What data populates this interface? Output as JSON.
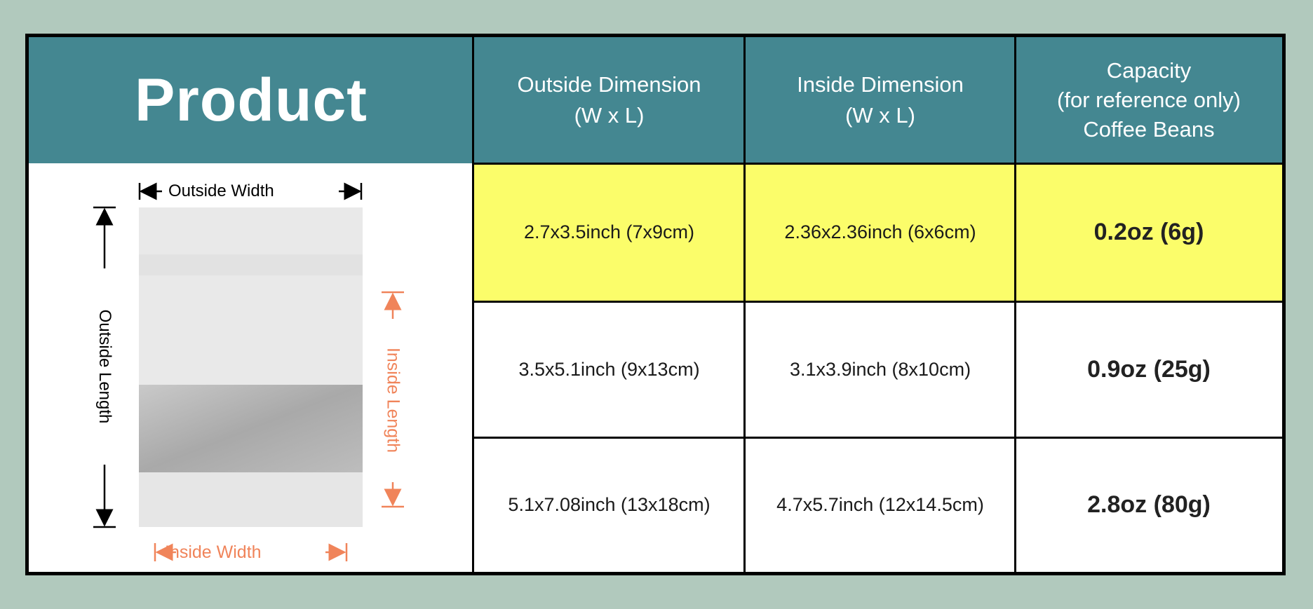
{
  "header": {
    "product": "Product",
    "outside_dimension": [
      "Outside Dimension",
      "(W x L)"
    ],
    "inside_dimension": [
      "Inside Dimension",
      "(W x L)"
    ],
    "capacity": [
      "Capacity",
      "(for reference only)",
      "Coffee Beans"
    ]
  },
  "diagram": {
    "outside_width": "Outside Width",
    "outside_length": "Outside Length",
    "inside_width": "Inside Width",
    "inside_length": "Inside Length"
  },
  "rows": [
    {
      "outside": "2.7x3.5inch (7x9cm)",
      "inside": "2.36x2.36inch (6x6cm)",
      "capacity": "0.2oz (6g)",
      "highlighted": true
    },
    {
      "outside": "3.5x5.1inch (9x13cm)",
      "inside": "3.1x3.9inch (8x10cm)",
      "capacity": "0.9oz (25g)",
      "highlighted": false
    },
    {
      "outside": "5.1x7.08inch (13x18cm)",
      "inside": "4.7x5.7inch (12x14.5cm)",
      "capacity": "2.8oz (80g)",
      "highlighted": false
    }
  ],
  "colors": {
    "header": "#448791",
    "highlight": "#fbfd6a",
    "background": "#b1c9bd",
    "inside_annotation": "#f0845a"
  }
}
